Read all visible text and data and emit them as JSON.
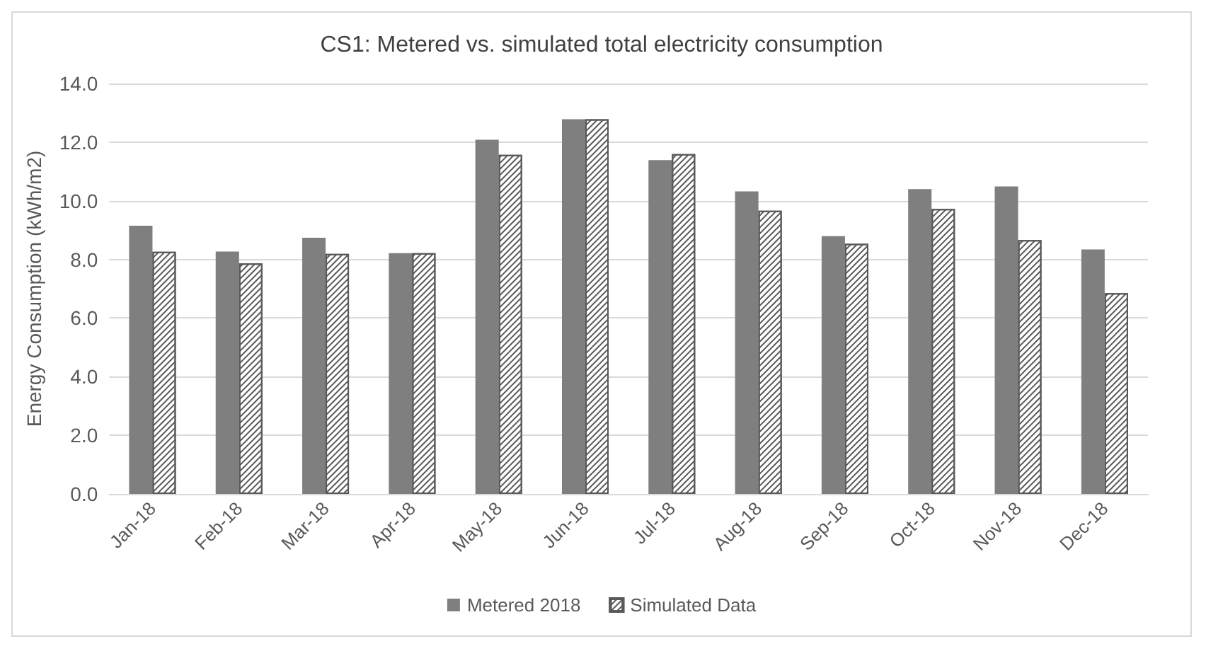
{
  "chart_data": {
    "type": "bar",
    "title": "CS1: Metered vs. simulated total electricity consumption",
    "ylabel": "Energy Consumption (kWh/m2)",
    "categories": [
      "Jan-18",
      "Feb-18",
      "Mar-18",
      "Apr-18",
      "May-18",
      "Jun-18",
      "Jul-18",
      "Aug-18",
      "Sep-18",
      "Oct-18",
      "Nov-18",
      "Dec-18"
    ],
    "series": [
      {
        "name": "Metered 2018",
        "color": "#7f7f7f",
        "values": [
          9.15,
          8.27,
          8.74,
          8.21,
          12.08,
          12.78,
          11.39,
          10.32,
          8.79,
          10.4,
          10.49,
          8.34
        ]
      },
      {
        "name": "Simulated Data",
        "color": "#595959",
        "values": [
          8.26,
          7.86,
          8.19,
          8.21,
          11.57,
          12.78,
          11.59,
          9.66,
          8.53,
          9.72,
          8.66,
          6.85
        ]
      }
    ],
    "ylim": [
      0,
      14
    ],
    "yticks": [
      {
        "value": 0,
        "label": "0.0"
      },
      {
        "value": 2,
        "label": "2.0"
      },
      {
        "value": 4,
        "label": "4.0"
      },
      {
        "value": 6,
        "label": "6.0"
      },
      {
        "value": 8,
        "label": "8.0"
      },
      {
        "value": 10,
        "label": "10.0"
      },
      {
        "value": 12,
        "label": "12.0"
      },
      {
        "value": 14,
        "label": "14.0"
      }
    ],
    "grid": "y",
    "legend": "bottom"
  }
}
